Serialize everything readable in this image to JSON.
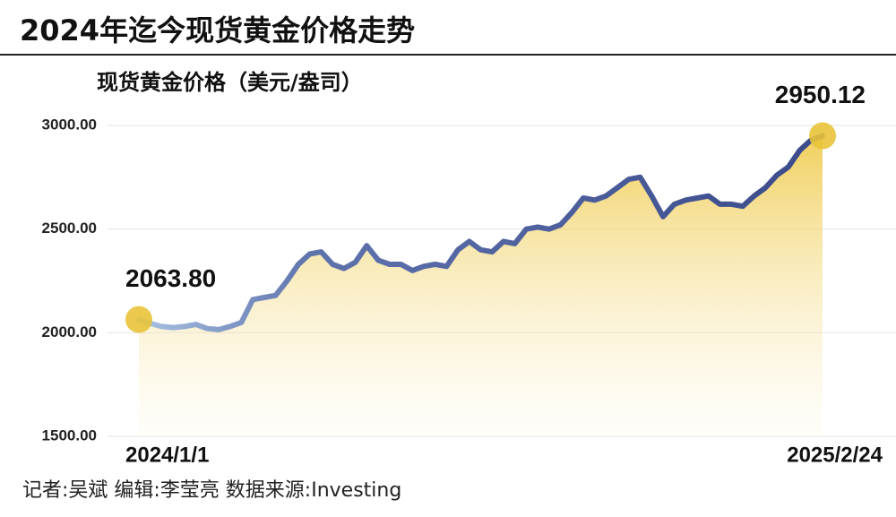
{
  "chart_data": {
    "type": "line",
    "title": "2024年迄今现货黄金价格走势",
    "source": "记者:吴斌  编辑:李莹亮  数据来源:Investing",
    "categories": [
      "2024/1/1",
      null,
      null,
      null,
      null,
      null,
      null,
      null,
      null,
      null,
      null,
      null,
      null,
      null,
      null,
      null,
      null,
      null,
      null,
      null,
      null,
      null,
      null,
      null,
      null,
      null,
      null,
      null,
      null,
      null,
      null,
      null,
      null,
      null,
      null,
      null,
      null,
      null,
      null,
      null,
      null,
      null,
      null,
      null,
      null,
      null,
      null,
      null,
      null,
      null,
      null,
      null,
      null,
      null,
      null,
      null,
      null,
      null,
      null,
      null,
      "2025/2/24"
    ],
    "series": [
      {
        "name": "现货黄金价格（美元/盎司）",
        "color": "#3a4a8a",
        "values": [
          2063.8,
          2045,
          2030,
          2025,
          2030,
          2040,
          2020,
          2015,
          2030,
          2050,
          2160,
          2170,
          2180,
          2250,
          2330,
          2380,
          2390,
          2330,
          2310,
          2340,
          2420,
          2350,
          2330,
          2330,
          2300,
          2320,
          2330,
          2320,
          2400,
          2440,
          2400,
          2390,
          2440,
          2430,
          2500,
          2510,
          2500,
          2520,
          2580,
          2650,
          2640,
          2660,
          2700,
          2740,
          2750,
          2660,
          2560,
          2620,
          2640,
          2650,
          2660,
          2620,
          2620,
          2610,
          2660,
          2700,
          2760,
          2800,
          2880,
          2930,
          2950.12
        ],
        "value_labels": [
          "2063.80",
          null,
          null,
          null,
          null,
          null,
          null,
          null,
          null,
          null,
          null,
          null,
          null,
          null,
          null,
          null,
          null,
          null,
          null,
          null,
          null,
          null,
          null,
          null,
          null,
          null,
          null,
          null,
          null,
          null,
          null,
          null,
          null,
          null,
          null,
          null,
          null,
          null,
          null,
          null,
          null,
          null,
          null,
          null,
          null,
          null,
          null,
          null,
          null,
          null,
          null,
          null,
          null,
          null,
          null,
          null,
          null,
          null,
          null,
          null,
          "2950.12"
        ]
      }
    ],
    "ylim": [
      1500,
      3000
    ],
    "yticks": [
      {
        "value": 1500,
        "label": "1500.00"
      },
      {
        "value": 2000,
        "label": "2000.00"
      },
      {
        "value": 2500,
        "label": "2500.00"
      },
      {
        "value": 3000,
        "label": "3000.00"
      }
    ],
    "grid": true
  }
}
